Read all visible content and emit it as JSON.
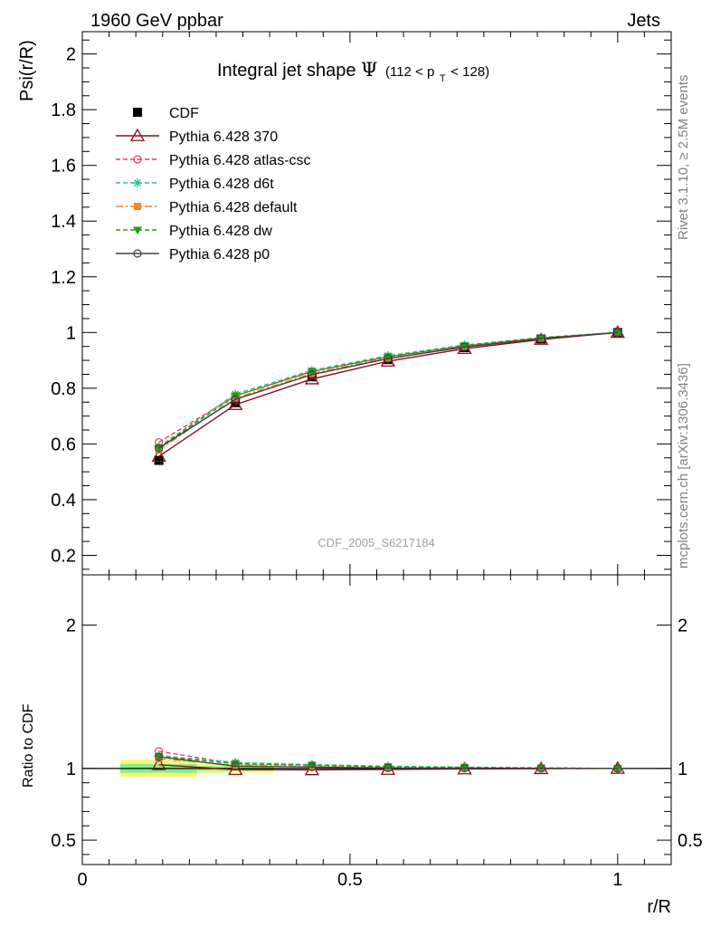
{
  "header": {
    "left": "1960 GeV ppbar",
    "right": "Jets"
  },
  "side_labels": {
    "rivet": "Rivet 3.1.10, ≥ 2.5M events",
    "mcplots": "mcplots.cern.ch [arXiv:1306.3436]"
  },
  "watermark": "CDF_2005_S6217184",
  "colors": {
    "cdf": "#000000",
    "p370": "#8b0a1e",
    "atlas": "#ff3355",
    "d6t": "#22c48a",
    "default": "#ff7f2a",
    "dw": "#1aa01a",
    "p0": "#404040",
    "band_inner": "#7ef08a",
    "band_outer": "#f6f679"
  },
  "chart_data": [
    {
      "type": "line",
      "title_main": "Integral jet shape",
      "title_symbol": "Ψ",
      "title_range_pre": "(112 < p",
      "title_range_sub": "T",
      "title_range_post": " < 128)",
      "xlabel": "r/R",
      "ylabel": "Psi(r/R)",
      "xlim": [
        0,
        1.1
      ],
      "ylim": [
        0.13,
        2.08
      ],
      "yticks": [
        0.2,
        0.4,
        0.6,
        0.8,
        1,
        1.2,
        1.4,
        1.6,
        1.8,
        2
      ],
      "ytick_labels": [
        "0.2",
        "0.4",
        "0.6",
        "0.8",
        "1",
        "1.2",
        "1.4",
        "1.6",
        "1.8",
        "2"
      ],
      "legend_position": "top-left",
      "x": [
        0.143,
        0.286,
        0.429,
        0.571,
        0.714,
        0.857,
        1.0
      ],
      "series": [
        {
          "name": "CDF",
          "key": "cdf",
          "style": "data",
          "values": [
            0.541,
            0.748,
            0.841,
            0.903,
            0.946,
            0.977,
            1.0
          ],
          "errors": [
            0.015,
            0.012,
            0.01,
            0.008,
            0.006,
            0.004,
            0.0
          ]
        },
        {
          "name": "Pythia 6.428 370",
          "key": "p370",
          "style": "solid",
          "marker": "tri-open",
          "values": [
            0.555,
            0.741,
            0.833,
            0.897,
            0.942,
            0.975,
            1.0
          ]
        },
        {
          "name": "Pythia 6.428 atlas-csc",
          "key": "atlas",
          "style": "dashed",
          "marker": "circle-open",
          "values": [
            0.606,
            0.773,
            0.86,
            0.913,
            0.952,
            0.98,
            1.0
          ]
        },
        {
          "name": "Pythia 6.428 d6t",
          "key": "d6t",
          "style": "dashed",
          "marker": "star",
          "values": [
            0.59,
            0.779,
            0.864,
            0.917,
            0.955,
            0.982,
            1.0
          ]
        },
        {
          "name": "Pythia 6.428 default",
          "key": "default",
          "style": "dashdot",
          "marker": "square",
          "values": [
            0.578,
            0.765,
            0.853,
            0.909,
            0.95,
            0.979,
            1.0
          ]
        },
        {
          "name": "Pythia 6.428 dw",
          "key": "dw",
          "style": "dashed",
          "marker": "tri-down",
          "values": [
            0.586,
            0.773,
            0.86,
            0.913,
            0.953,
            0.981,
            1.0
          ]
        },
        {
          "name": "Pythia 6.428 p0",
          "key": "p0",
          "style": "solid",
          "marker": "circle-open",
          "values": [
            0.585,
            0.76,
            0.849,
            0.906,
            0.948,
            0.978,
            1.0
          ]
        }
      ]
    },
    {
      "type": "line",
      "ylabel": "Ratio to CDF",
      "xlabel": "r/R",
      "xlim": [
        0,
        1.1
      ],
      "ylim": [
        0.33,
        2.35
      ],
      "yticks": [
        0.5,
        1,
        2
      ],
      "ytick_labels": [
        "0.5",
        "1",
        "2"
      ],
      "xticks": [
        0,
        0.5,
        1
      ],
      "xtick_labels": [
        "0",
        "0.5",
        "1"
      ],
      "reference": 1,
      "bands": [
        {
          "x0": 0.071,
          "x1": 0.214,
          "inner": [
            0.97,
            1.03
          ],
          "outer": [
            0.94,
            1.06
          ]
        },
        {
          "x0": 0.214,
          "x1": 0.357,
          "inner": [
            0.985,
            1.015
          ],
          "outer": [
            0.97,
            1.03
          ]
        }
      ],
      "x": [
        0.143,
        0.286,
        0.429,
        0.571,
        0.714,
        0.857,
        1.0
      ],
      "series": [
        {
          "name": "Pythia 6.428 370",
          "key": "p370",
          "style": "solid",
          "marker": "tri-open",
          "values": [
            1.026,
            0.991,
            0.99,
            0.993,
            0.996,
            0.998,
            1.0
          ]
        },
        {
          "name": "Pythia 6.428 atlas-csc",
          "key": "atlas",
          "style": "dashed",
          "marker": "circle-open",
          "values": [
            1.12,
            1.033,
            1.023,
            1.011,
            1.006,
            1.003,
            1.0
          ]
        },
        {
          "name": "Pythia 6.428 d6t",
          "key": "d6t",
          "style": "dashed",
          "marker": "star",
          "values": [
            1.09,
            1.042,
            1.027,
            1.016,
            1.009,
            1.005,
            1.0
          ]
        },
        {
          "name": "Pythia 6.428 default",
          "key": "default",
          "style": "dashdot",
          "marker": "square",
          "values": [
            1.068,
            1.023,
            1.014,
            1.007,
            1.004,
            1.002,
            1.0
          ]
        },
        {
          "name": "Pythia 6.428 dw",
          "key": "dw",
          "style": "dashed",
          "marker": "tri-down",
          "values": [
            1.083,
            1.033,
            1.023,
            1.011,
            1.007,
            1.004,
            1.0
          ]
        },
        {
          "name": "Pythia 6.428 p0",
          "key": "p0",
          "style": "solid",
          "marker": "circle-open",
          "values": [
            1.081,
            1.016,
            1.01,
            1.003,
            1.002,
            1.001,
            1.0
          ]
        }
      ]
    }
  ]
}
